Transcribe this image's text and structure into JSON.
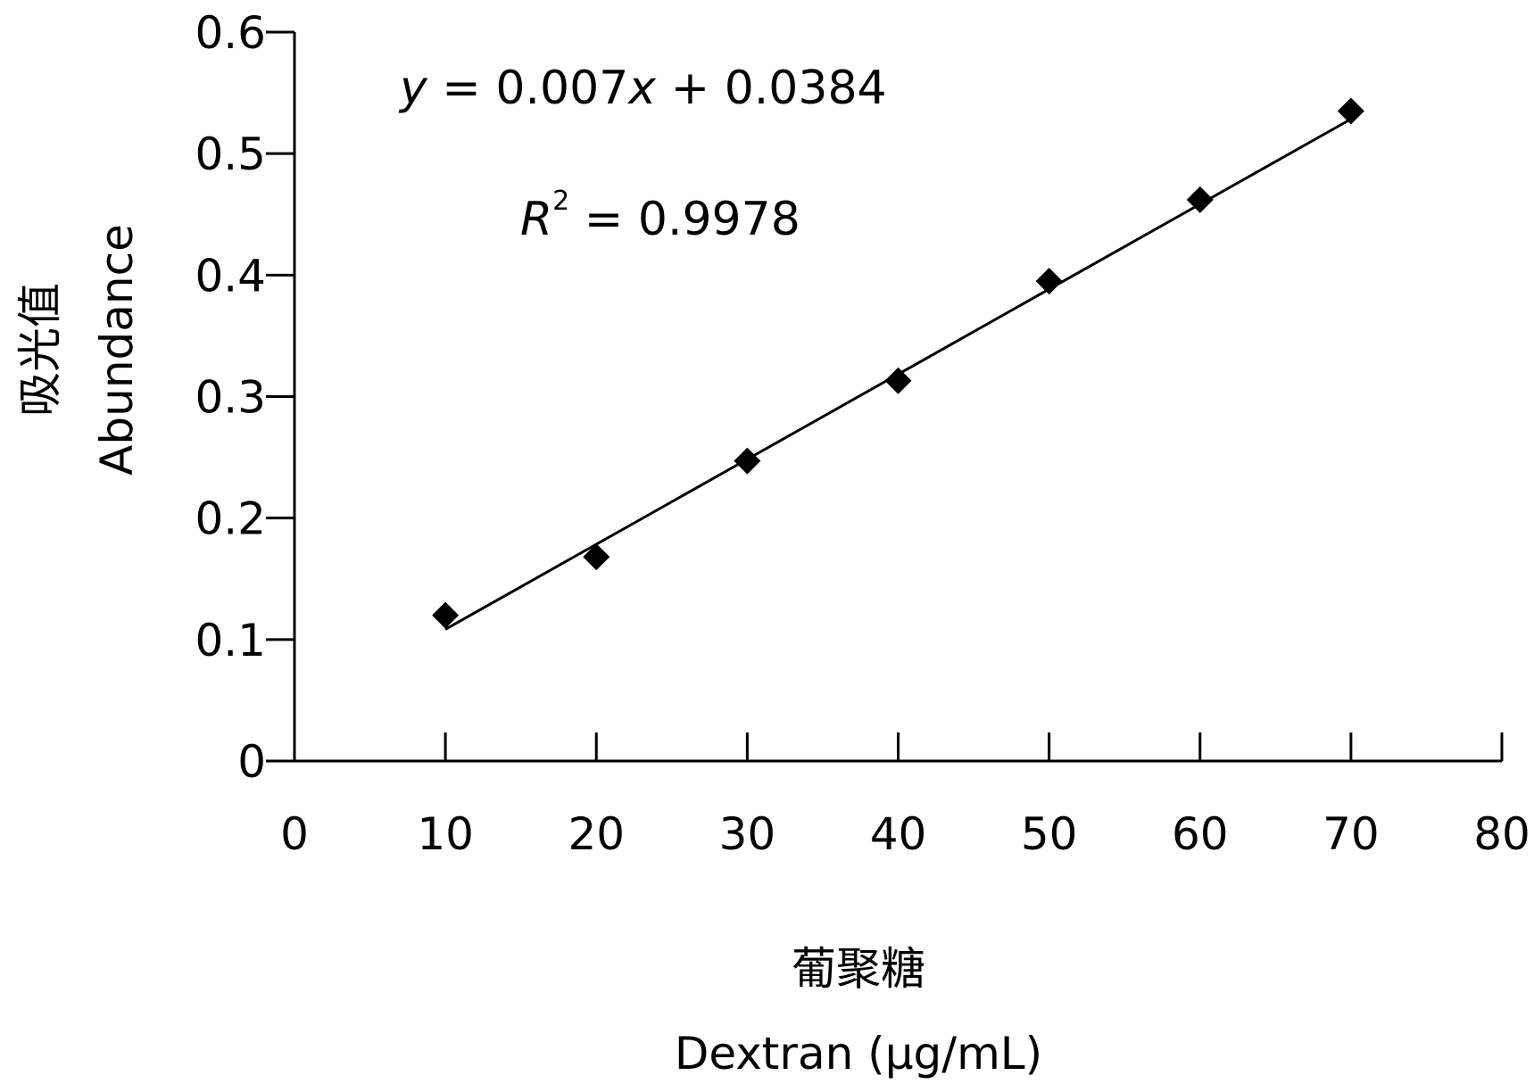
{
  "chart_data": {
    "type": "scatter",
    "title": "",
    "xlabel_cn": "葡聚糖",
    "xlabel": "Dextran (μg/mL)",
    "ylabel_cn": "吸光值",
    "ylabel": "Abundance",
    "xlim": [
      0,
      80
    ],
    "ylim": [
      0,
      0.6
    ],
    "x_ticks": [
      0,
      10,
      20,
      30,
      40,
      50,
      60,
      70,
      80
    ],
    "x_tick_labels": [
      "0",
      "10",
      "20",
      "30",
      "40",
      "50",
      "60",
      "70",
      "80"
    ],
    "y_ticks": [
      0,
      0.1,
      0.2,
      0.3,
      0.4,
      0.5,
      0.6
    ],
    "y_tick_labels": [
      "0",
      "0.1",
      "0.2",
      "0.3",
      "0.4",
      "0.5",
      "0.6"
    ],
    "grid": false,
    "legend": "none",
    "marker": "diamond",
    "marker_color": "#000000",
    "line_color": "#000000",
    "series": [
      {
        "x": [
          10,
          20,
          30,
          40,
          50,
          60,
          70
        ],
        "values": [
          0.12,
          0.168,
          0.247,
          0.313,
          0.395,
          0.462,
          0.535
        ]
      }
    ],
    "trendline": {
      "slope": 0.007,
      "intercept": 0.0384,
      "x_range": [
        10,
        70
      ]
    },
    "annotations": {
      "equation": {
        "y": "y",
        "eq": " = 0.007",
        "x": "x",
        "rest": " + 0.0384"
      },
      "r2": {
        "r": "R",
        "sup": "2",
        "rest": " = 0.9978"
      }
    }
  }
}
